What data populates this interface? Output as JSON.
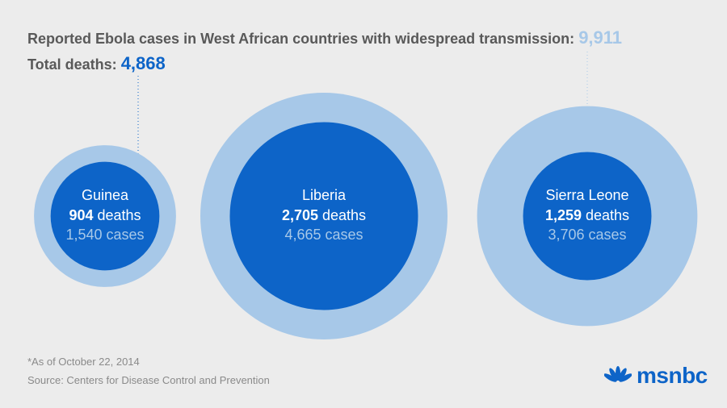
{
  "header": {
    "cases_label": "Reported Ebola cases in West African countries with widespread transmission:",
    "total_cases": "9,911",
    "deaths_label": "Total deaths:",
    "total_deaths": "4,868"
  },
  "chart_data": {
    "type": "bubble",
    "title": "Reported Ebola cases in West African countries with widespread transmission",
    "series": [
      {
        "name": "cases",
        "unit": "cases"
      },
      {
        "name": "deaths",
        "unit": "deaths"
      }
    ],
    "points": [
      {
        "country": "Guinea",
        "deaths": 904,
        "cases": 1540,
        "deaths_label": "904",
        "cases_label": "1,540"
      },
      {
        "country": "Liberia",
        "deaths": 2705,
        "cases": 4665,
        "deaths_label": "2,705",
        "cases_label": "4,665"
      },
      {
        "country": "Sierra Leone",
        "deaths": 1259,
        "cases": 3706,
        "deaths_label": "1,259",
        "cases_label": "3,706"
      }
    ],
    "totals": {
      "cases": 9911,
      "deaths": 4868
    },
    "colors": {
      "cases": "#a7c8e8",
      "deaths": "#0d64c8"
    }
  },
  "footer": {
    "footnote": "*As of October 22, 2014",
    "source": "Source: Centers for Disease Control and Prevention",
    "logo_text": "msnbc",
    "logo_icon": "peacock-icon"
  }
}
